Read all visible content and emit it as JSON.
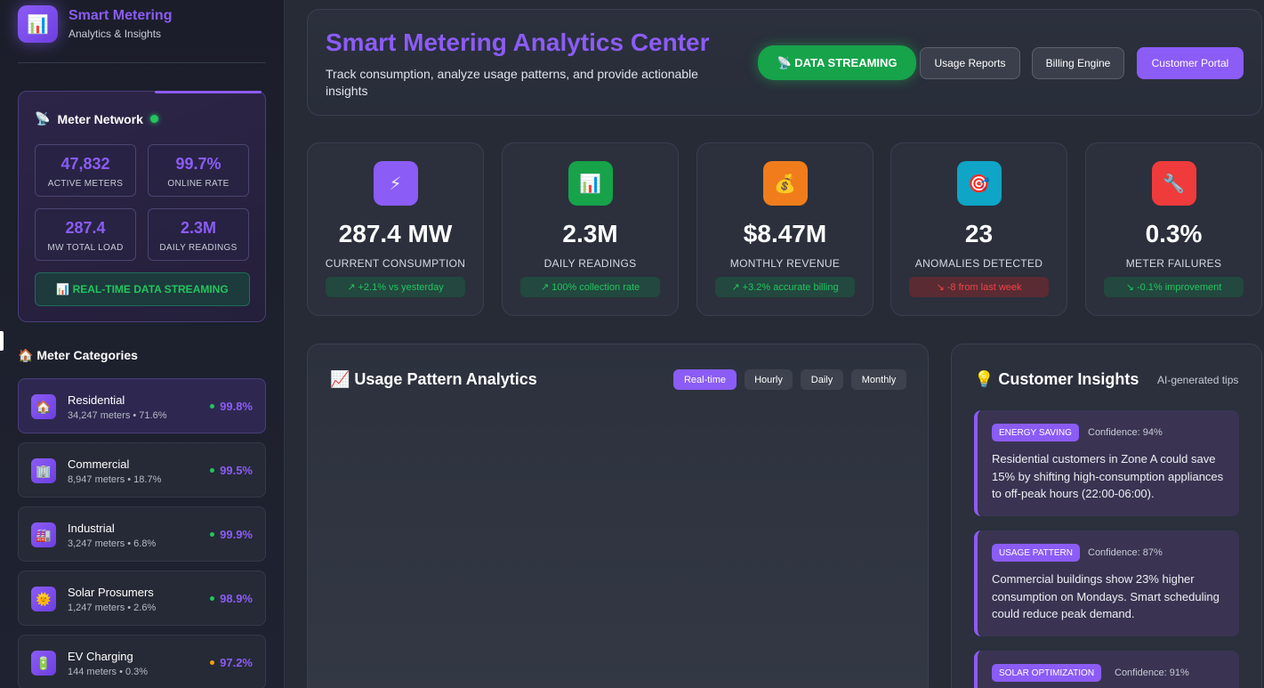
{
  "brand": {
    "title": "Smart Metering",
    "subtitle": "Analytics & Insights",
    "logo_icon": "bar-chart-icon"
  },
  "network": {
    "title": "Meter Network",
    "stats": [
      {
        "value": "47,832",
        "label": "ACTIVE METERS"
      },
      {
        "value": "99.7%",
        "label": "ONLINE RATE"
      },
      {
        "value": "287.4",
        "label": "MW TOTAL LOAD"
      },
      {
        "value": "2.3M",
        "label": "DAILY READINGS"
      }
    ],
    "stream_label": "📊 REAL-TIME DATA STREAMING"
  },
  "categories": {
    "heading": "🏠 Meter Categories",
    "items": [
      {
        "icon": "🏠",
        "name": "Residential",
        "meta": "34,247 meters • 71.6%",
        "rate": "99.8%",
        "dot": "#22c55e"
      },
      {
        "icon": "🏢",
        "name": "Commercial",
        "meta": "8,947 meters • 18.7%",
        "rate": "99.5%",
        "dot": "#22c55e"
      },
      {
        "icon": "🏭",
        "name": "Industrial",
        "meta": "3,247 meters • 6.8%",
        "rate": "99.9%",
        "dot": "#22c55e"
      },
      {
        "icon": "🌞",
        "name": "Solar Prosumers",
        "meta": "1,247 meters • 2.6%",
        "rate": "98.9%",
        "dot": "#22c55e"
      },
      {
        "icon": "🔋",
        "name": "EV Charging",
        "meta": "144 meters • 0.3%",
        "rate": "97.2%",
        "dot": "#f59e0b"
      }
    ]
  },
  "header": {
    "title": "Smart Metering Analytics Center",
    "description": "Track consumption, analyze usage patterns, and provide actionable insights",
    "buttons": {
      "streaming": "📡 DATA STREAMING",
      "usage_reports": "Usage Reports",
      "billing_engine": "Billing Engine",
      "customer_portal": "Customer Portal"
    }
  },
  "kpis": [
    {
      "icon": "⚡",
      "icon_bg": "#8b5cf6",
      "value": "287.4 MW",
      "label": "CURRENT CONSUMPTION",
      "change": "↗ +2.1% vs yesterday",
      "trend": "good"
    },
    {
      "icon": "📊",
      "icon_bg": "#16a34a",
      "value": "2.3M",
      "label": "DAILY READINGS",
      "change": "↗ 100% collection rate",
      "trend": "good"
    },
    {
      "icon": "💰",
      "icon_bg": "#f07c1b",
      "value": "$8.47M",
      "label": "MONTHLY REVENUE",
      "change": "↗ +3.2% accurate billing",
      "trend": "good"
    },
    {
      "icon": "🎯",
      "icon_bg": "#0ea5c6",
      "value": "23",
      "label": "ANOMALIES DETECTED",
      "change": "↘ -8 from last week",
      "trend": "bad"
    },
    {
      "icon": "🔧",
      "icon_bg": "#ef3b3b",
      "value": "0.3%",
      "label": "METER FAILURES",
      "change": "↘ -0.1% improvement",
      "trend": "good"
    }
  ],
  "usage": {
    "title": "📈 Usage Pattern Analytics",
    "tabs": [
      "Real-time",
      "Hourly",
      "Daily",
      "Monthly"
    ],
    "active_tab": "Real-time"
  },
  "insights": {
    "title": "💡 Customer Insights",
    "subtitle": "AI-generated tips",
    "tips": [
      {
        "tag": "ENERGY SAVING",
        "confidence": "Confidence: 94%",
        "text": "Residential customers in Zone A could save 15% by shifting high-consumption appliances to off-peak hours (22:00-06:00)."
      },
      {
        "tag": "USAGE PATTERN",
        "confidence": "Confidence: 87%",
        "text": "Commercial buildings show 23% higher consumption on Mondays. Smart scheduling could reduce peak demand."
      },
      {
        "tag": "SOLAR OPTIMIZATION",
        "confidence": "Confidence: 91%",
        "text": ""
      }
    ]
  },
  "colors": {
    "accent": "#8b5cf6",
    "success": "#22c55e",
    "danger": "#ef4444",
    "warning": "#f59e0b"
  }
}
